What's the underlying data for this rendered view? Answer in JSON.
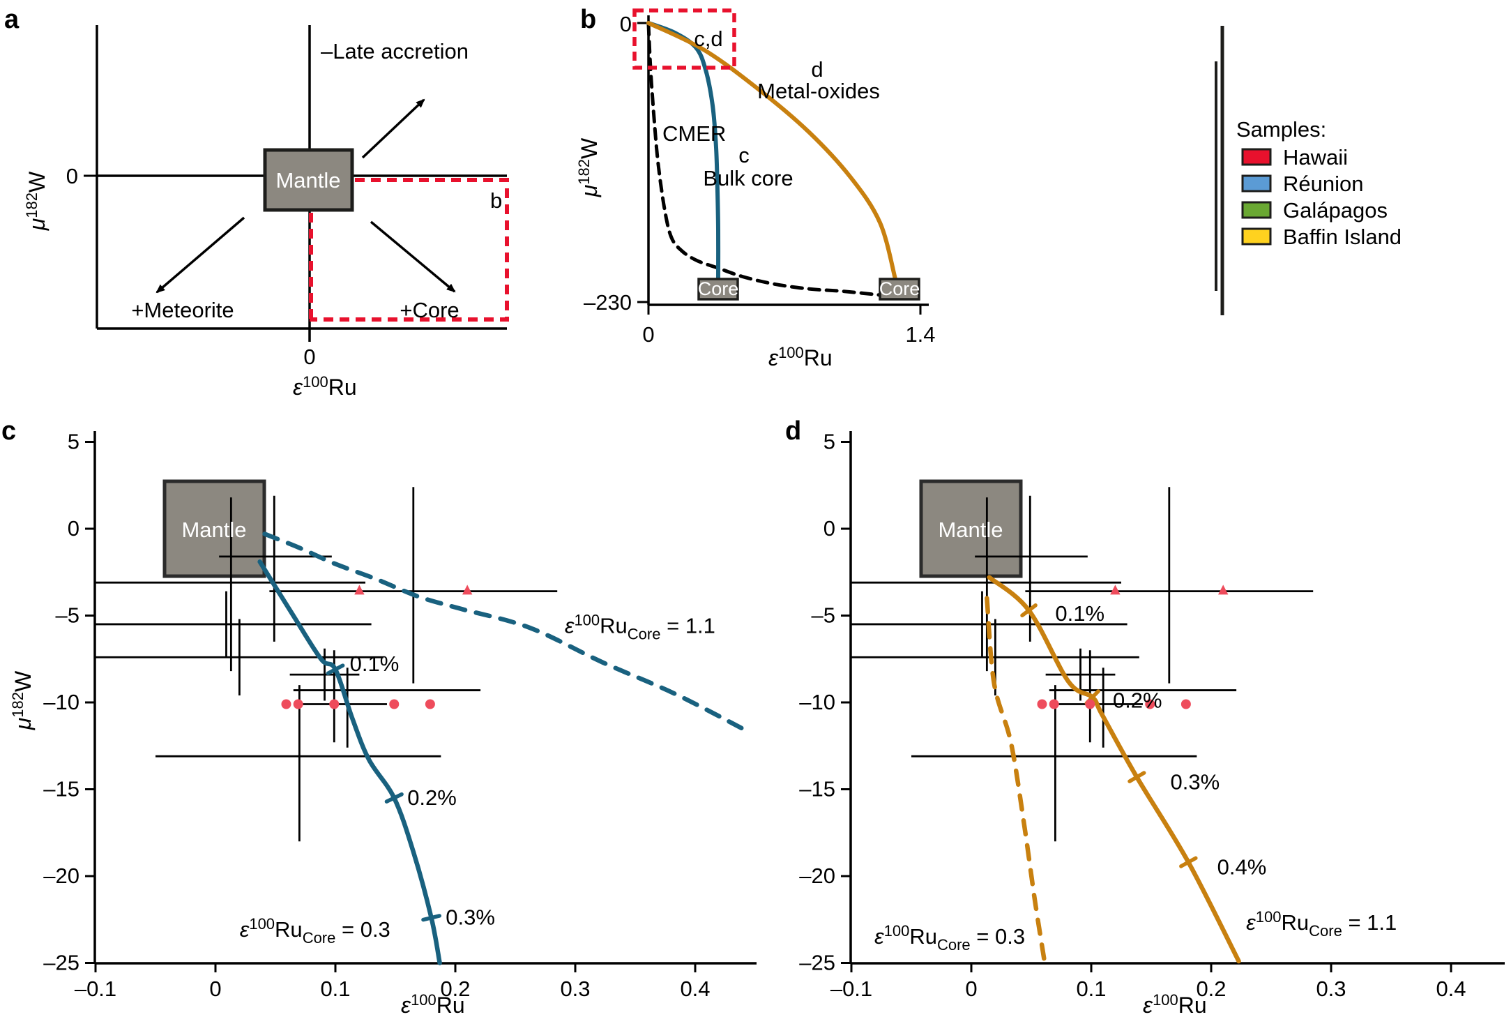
{
  "symbols": {
    "mu": "μ",
    "sup_182": "182",
    "w": "W",
    "eps": "ε",
    "sup_100": "100",
    "ru": "Ru",
    "sub_core": "Core",
    "eq": " = "
  },
  "panel_a": {
    "label": "a",
    "mantle": "Mantle",
    "late_accretion": "–Late accretion",
    "meteorite": "+Meteorite",
    "core": "+Core",
    "inset_ref": "b",
    "y_zero": "0",
    "x_zero": "0"
  },
  "panel_b": {
    "label": "b",
    "y_top": "0",
    "y_bottom": "–230",
    "x_left": "0",
    "x_right": "1.4",
    "inset_ref": "c,d",
    "cmer": "CMER",
    "bulk_core_ref": "c",
    "bulk_core": "Bulk core",
    "metal_oxides_ref": "d",
    "metal_oxides": "Metal-oxides",
    "core_left": "Core",
    "core_right": "Core"
  },
  "legend": {
    "title": "Samples:",
    "items": [
      {
        "label": "Hawaii",
        "color": "#e8112d"
      },
      {
        "label": "Réunion",
        "color": "#5b9bd5"
      },
      {
        "label": "Galápagos",
        "color": "#6aa832"
      },
      {
        "label": "Baffin Island",
        "color": "#ffd21f"
      }
    ]
  },
  "panel_c": {
    "label": "c",
    "mantle": "Mantle",
    "xtick_labels": [
      "–0.1",
      "0",
      "0.1",
      "0.2",
      "0.3",
      "0.4"
    ],
    "ytick_labels": [
      "5",
      "0",
      "–5",
      "–10",
      "–15",
      "–20",
      "–25"
    ]
  },
  "panel_d": {
    "label": "d",
    "mantle": "Mantle",
    "xtick_labels": [
      "–0.1",
      "0",
      "0.1",
      "0.2",
      "0.3",
      "0.4"
    ],
    "ytick_labels": [
      "5",
      "0",
      "–5",
      "–10",
      "–15",
      "–20",
      "–25"
    ]
  },
  "samples": [
    {
      "sample": "Hawaii",
      "marker": "triangle",
      "color": "#e8112d",
      "x": 0.013,
      "y": -3.1,
      "xerr": [
        -0.1,
        0.125
      ],
      "yerr": [
        1.8,
        -8.2
      ],
      "size": 15
    },
    {
      "sample": "Hawaii",
      "marker": "triangle",
      "color": "#e8112d",
      "x": 0.165,
      "y": -3.6,
      "xerr": [
        0.045,
        0.285
      ],
      "yerr": [
        2.4,
        -8.9
      ],
      "size": 15
    },
    {
      "sample": "Baffin Island",
      "marker": "diamond",
      "color": "#ffd21f",
      "x": 0.049,
      "y": -1.6,
      "xerr": [
        0.003,
        0.097
      ],
      "yerr": [
        1.9,
        -6.5
      ],
      "size": 20
    },
    {
      "sample": "Galápagos",
      "marker": "square",
      "color": "#6aa832",
      "x": 0.009,
      "y": -5.5,
      "xerr": [
        -0.1,
        0.13
      ],
      "yerr": [
        -3.6,
        -7.4
      ],
      "size": 13
    },
    {
      "sample": "Réunion",
      "marker": "square",
      "color": "#5b9bd5",
      "x": 0.02,
      "y": -7.4,
      "xerr": [
        -0.1,
        0.14
      ],
      "yerr": [
        -5.2,
        -9.6
      ],
      "size": 14
    },
    {
      "sample": "Hawaii",
      "marker": "star",
      "color": "#e8112d",
      "x": 0.091,
      "y": -8.4,
      "xerr": [
        0.062,
        0.12
      ],
      "yerr": [
        -6.9,
        -9.9
      ],
      "size": 25
    },
    {
      "sample": "Hawaii",
      "marker": "square",
      "color": "#e8112d",
      "x": 0.099,
      "y": -9.3,
      "xerr": [
        0.065,
        0.221
      ],
      "yerr": [
        -7.0,
        -12.3
      ],
      "size": 15
    },
    {
      "sample": "Hawaii",
      "marker": "circle",
      "color": "#e8112d",
      "x": 0.11,
      "y": -10.1,
      "xerr": [
        0.073,
        0.143
      ],
      "yerr": [
        -8.0,
        -12.6
      ],
      "size": 16
    },
    {
      "sample": "Hawaii",
      "marker": "square",
      "color": "#e8112d",
      "x": 0.07,
      "y": -13.1,
      "xerr": [
        -0.05,
        0.188
      ],
      "yerr": [
        -9.0,
        -18.0
      ],
      "size": 15
    }
  ],
  "literature": {
    "dots": {
      "color": "#ee4c5c",
      "y": -10.1,
      "x": [
        0.059,
        0.069,
        0.099,
        0.149,
        0.179
      ],
      "size": 7
    },
    "small_triangles": {
      "color": "#ee4c5c",
      "y": -3.55,
      "x": [
        0.12,
        0.21
      ],
      "size": 8
    }
  },
  "chart_data": [
    {
      "id": "b",
      "type": "line",
      "xlabel": "ε100Ru",
      "ylabel": "μ182W",
      "xlim": [
        0,
        1.4
      ],
      "ylim": [
        -230,
        0
      ],
      "xticks": [
        0,
        1.4
      ],
      "yticks": [
        0,
        -230
      ],
      "grid": false,
      "series": [
        {
          "name": "CMER",
          "style": "dashed",
          "color": "#000000",
          "points": [
            [
              0,
              -1
            ],
            [
              0.011,
              -38
            ],
            [
              0.029,
              -78
            ],
            [
              0.05,
              -115
            ],
            [
              0.083,
              -152
            ],
            [
              0.118,
              -175
            ],
            [
              0.172,
              -186
            ],
            [
              0.251,
              -194
            ],
            [
              0.359,
              -200
            ],
            [
              0.485,
              -207
            ],
            [
              0.646,
              -213
            ],
            [
              0.826,
              -217
            ],
            [
              1.005,
              -219
            ],
            [
              1.192,
              -222
            ]
          ]
        },
        {
          "name": "Bulk core",
          "panel_ref": "c",
          "style": "solid",
          "color": "#19617f",
          "points": [
            [
              0,
              0
            ],
            [
              0.136,
              -8
            ],
            [
              0.244,
              -20
            ],
            [
              0.294,
              -38
            ],
            [
              0.33,
              -67
            ],
            [
              0.348,
              -101
            ],
            [
              0.355,
              -135
            ],
            [
              0.359,
              -169
            ],
            [
              0.359,
              -210
            ]
          ]
        },
        {
          "name": "Metal-oxides",
          "panel_ref": "d",
          "style": "solid",
          "color": "#c8800f",
          "points": [
            [
              0,
              0
            ],
            [
              0.287,
              -22
            ],
            [
              0.574,
              -55
            ],
            [
              0.826,
              -89
            ],
            [
              1.041,
              -126
            ],
            [
              1.192,
              -163
            ],
            [
              1.271,
              -209
            ]
          ]
        }
      ],
      "end_boxes": [
        {
          "label": "Core",
          "x": 0.359
        },
        {
          "label": "Core",
          "x": 1.292
        }
      ],
      "inset": {
        "label": "c,d"
      }
    },
    {
      "id": "c",
      "type": "scatter",
      "xlabel": "ε100Ru",
      "ylabel": "μ182W",
      "xlim": [
        -0.1,
        0.45
      ],
      "ylim": [
        -25,
        5
      ],
      "xticks": [
        -0.1,
        0,
        0.1,
        0.2,
        0.3,
        0.4
      ],
      "yticks": [
        5,
        0,
        -5,
        -10,
        -15,
        -20,
        -25
      ],
      "grid": false,
      "mantle_box": {
        "x": [
          -0.042,
          0.041
        ],
        "y": [
          2.7,
          -2.7
        ]
      },
      "curves": [
        {
          "core_value": "0.3",
          "style": "solid",
          "color": "#19617f",
          "points": [
            [
              0.037,
              -1.9
            ],
            [
              0.064,
              -4.9
            ],
            [
              0.088,
              -7.5
            ],
            [
              0.1,
              -8.1
            ],
            [
              0.114,
              -10.9
            ],
            [
              0.128,
              -13.3
            ],
            [
              0.149,
              -15.5
            ],
            [
              0.165,
              -18.6
            ],
            [
              0.18,
              -22.4
            ],
            [
              0.187,
              -25.0
            ]
          ],
          "ticks": [
            {
              "label": "0.1%",
              "x": 0.1,
              "y": -8.1,
              "lx": 0.112,
              "ly": -8.2
            },
            {
              "label": "0.2%",
              "x": 0.149,
              "y": -15.5,
              "lx": 0.16,
              "ly": -15.9
            },
            {
              "label": "0.3%",
              "x": 0.18,
              "y": -22.4,
              "lx": 0.192,
              "ly": -22.8
            }
          ],
          "value_label_pos": {
            "x": 0.083,
            "y": -23.5
          }
        },
        {
          "core_value": "1.1",
          "style": "dashed",
          "color": "#19617f",
          "points": [
            [
              0.041,
              -0.3
            ],
            [
              0.07,
              -1.1
            ],
            [
              0.099,
              -2.0
            ],
            [
              0.134,
              -2.9
            ],
            [
              0.169,
              -3.9
            ],
            [
              0.204,
              -4.6
            ],
            [
              0.262,
              -5.7
            ],
            [
              0.323,
              -7.7
            ],
            [
              0.383,
              -9.5
            ],
            [
              0.442,
              -11.6
            ]
          ],
          "ticks": [],
          "value_label_pos": {
            "x": 0.354,
            "y": -6.0
          }
        }
      ]
    },
    {
      "id": "d",
      "type": "scatter",
      "xlabel": "ε100Ru",
      "ylabel": "μ182W",
      "xlim": [
        -0.1,
        0.45
      ],
      "ylim": [
        -25,
        5
      ],
      "xticks": [
        -0.1,
        0,
        0.1,
        0.2,
        0.3,
        0.4
      ],
      "yticks": [
        5,
        0,
        -5,
        -10,
        -15,
        -20,
        -25
      ],
      "grid": false,
      "mantle_box": {
        "x": [
          -0.042,
          0.041
        ],
        "y": [
          2.7,
          -2.7
        ]
      },
      "curves": [
        {
          "core_value": "1.1",
          "style": "solid",
          "color": "#c8800f",
          "points": [
            [
              0.015,
              -2.8
            ],
            [
              0.048,
              -4.7
            ],
            [
              0.081,
              -8.8
            ],
            [
              0.101,
              -9.7
            ],
            [
              0.109,
              -10.7
            ],
            [
              0.138,
              -14.3
            ],
            [
              0.181,
              -19.2
            ],
            [
              0.223,
              -24.9
            ]
          ],
          "ticks": [
            {
              "label": "0.1%",
              "x": 0.048,
              "y": -4.7,
              "lx": 0.07,
              "ly": -5.3
            },
            {
              "label": "0.2%",
              "x": 0.101,
              "y": -9.7,
              "lx": 0.118,
              "ly": -10.3
            },
            {
              "label": "0.3%",
              "x": 0.138,
              "y": -14.3,
              "lx": 0.166,
              "ly": -15.0
            },
            {
              "label": "0.4%",
              "x": 0.181,
              "y": -19.2,
              "lx": 0.205,
              "ly": -19.9
            }
          ],
          "value_label_pos": {
            "x": 0.292,
            "y": -23.1
          }
        },
        {
          "core_value": "0.3",
          "style": "dashed",
          "color": "#c8800f",
          "points": [
            [
              0.013,
              -4.0
            ],
            [
              0.019,
              -8.9
            ],
            [
              0.033,
              -12.3
            ],
            [
              0.044,
              -17.0
            ],
            [
              0.053,
              -21.4
            ],
            [
              0.061,
              -24.9
            ]
          ],
          "ticks": [],
          "value_label_pos": {
            "x": -0.018,
            "y": -23.9
          }
        }
      ]
    }
  ]
}
